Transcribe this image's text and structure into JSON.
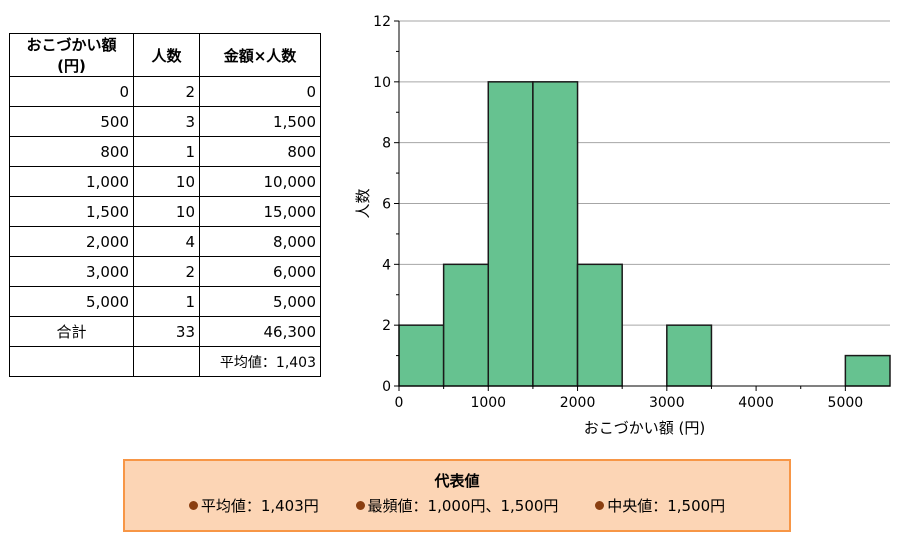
{
  "table": {
    "headers": [
      "おこづかい額(円)",
      "人数",
      "金額×人数"
    ],
    "rows": [
      [
        "0",
        "2",
        "0"
      ],
      [
        "500",
        "3",
        "1,500"
      ],
      [
        "800",
        "1",
        "800"
      ],
      [
        "1,000",
        "10",
        "10,000"
      ],
      [
        "1,500",
        "10",
        "15,000"
      ],
      [
        "2,000",
        "4",
        "8,000"
      ],
      [
        "3,000",
        "2",
        "6,000"
      ],
      [
        "5,000",
        "1",
        "5,000"
      ]
    ],
    "total_label": "合計",
    "total_count": "33",
    "total_amount": "46,300",
    "average_label": "平均値：1,403"
  },
  "chart_data": {
    "type": "bar",
    "subtype": "histogram",
    "bin_width": 500,
    "bins": [
      {
        "start": 0,
        "end": 500,
        "count": 2
      },
      {
        "start": 500,
        "end": 1000,
        "count": 4
      },
      {
        "start": 1000,
        "end": 1500,
        "count": 10
      },
      {
        "start": 1500,
        "end": 2000,
        "count": 10
      },
      {
        "start": 2000,
        "end": 2500,
        "count": 4
      },
      {
        "start": 3000,
        "end": 3500,
        "count": 2
      },
      {
        "start": 5000,
        "end": 5500,
        "count": 1
      }
    ],
    "xlabel": "おこづかい額 (円)",
    "ylabel": "人数",
    "xlim": [
      0,
      5500
    ],
    "ylim": [
      0,
      12
    ],
    "xticks": [
      0,
      1000,
      2000,
      3000,
      4000,
      5000
    ],
    "yticks": [
      0,
      2,
      4,
      6,
      8,
      10,
      12
    ],
    "grid": true,
    "bar_color": "#66c290",
    "bar_edge_color": "#1a1a1a"
  },
  "summary": {
    "title": "代表値",
    "items": [
      "平均値：1,403円",
      "最頻値：1,000円、1,500円",
      "中央値：1,500円"
    ],
    "background": "#fcd5b5",
    "border": "#f79646",
    "bullet_color": "#8b3f10"
  }
}
